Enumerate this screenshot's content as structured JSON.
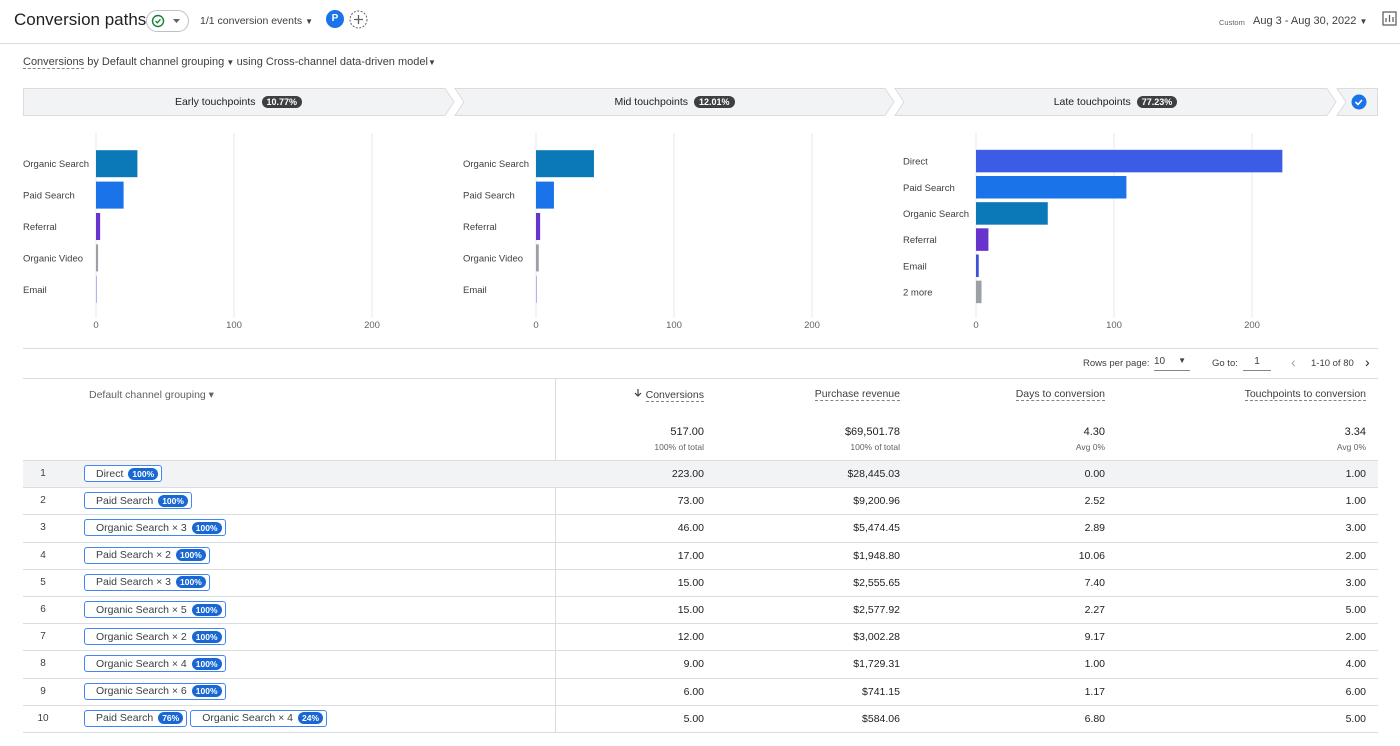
{
  "header": {
    "title": "Conversion paths",
    "events": "1/1 conversion events",
    "avatar": "P",
    "date_prefix": "Custom",
    "date_range": "Aug 3 - Aug 30, 2022"
  },
  "subtitle": {
    "metric": "Conversions",
    "dimension": "by Default channel grouping",
    "model": "using Cross-channel data-driven model"
  },
  "stages": [
    {
      "label": "Early touchpoints",
      "share": "10.77%"
    },
    {
      "label": "Mid touchpoints",
      "share": "12.01%"
    },
    {
      "label": "Late touchpoints",
      "share": "77.23%"
    }
  ],
  "chart_data": [
    {
      "type": "bar",
      "orientation": "horizontal",
      "categories": [
        "Organic Search",
        "Paid Search",
        "Referral",
        "Organic Video",
        "Email"
      ],
      "values": [
        30,
        20,
        3,
        1.5,
        0.3
      ],
      "colors": [
        "#0b78b8",
        "#1a73e8",
        "#6633cc",
        "#9aa0a6",
        "#3f51d8"
      ],
      "xlim": [
        0,
        250
      ],
      "xticks": [
        0,
        100,
        200
      ],
      "grid": true
    },
    {
      "type": "bar",
      "orientation": "horizontal",
      "categories": [
        "Organic Search",
        "Paid Search",
        "Referral",
        "Organic Video",
        "Email"
      ],
      "values": [
        42,
        13,
        3,
        2,
        0.3
      ],
      "colors": [
        "#0b78b8",
        "#1a73e8",
        "#6633cc",
        "#9aa0a6",
        "#3f51d8"
      ],
      "xlim": [
        0,
        250
      ],
      "xticks": [
        0,
        100,
        200
      ],
      "grid": true
    },
    {
      "type": "bar",
      "orientation": "horizontal",
      "categories": [
        "Direct",
        "Paid Search",
        "Organic Search",
        "Referral",
        "Email",
        "2 more"
      ],
      "values": [
        222,
        109,
        52,
        9,
        2,
        4
      ],
      "colors": [
        "#3d5ce6",
        "#1a73e8",
        "#0b78b8",
        "#6633cc",
        "#3f51d8",
        "#9aa0a6"
      ],
      "xlim": [
        0,
        250
      ],
      "xticks": [
        0,
        100,
        200
      ],
      "grid": true
    }
  ],
  "pagination": {
    "rows_label": "Rows per page:",
    "rows": "10",
    "goto_label": "Go to:",
    "page": "1",
    "range": "1-10 of 80"
  },
  "table": {
    "columns": [
      "Default channel grouping",
      "Conversions",
      "Purchase revenue",
      "Days to conversion",
      "Touchpoints to conversion"
    ],
    "totals": [
      [
        "517.00",
        "100% of total"
      ],
      [
        "$69,501.78",
        "100% of total"
      ],
      [
        "4.30",
        "Avg 0%"
      ],
      [
        "3.34",
        "Avg 0%"
      ]
    ],
    "rows": [
      {
        "rank": 1,
        "path": [
          {
            "label": "Direct",
            "share": "100%"
          }
        ],
        "cells": [
          "223.00",
          "$28,445.03",
          "0.00",
          "1.00"
        ]
      },
      {
        "rank": 2,
        "path": [
          {
            "label": "Paid Search",
            "share": "100%"
          }
        ],
        "cells": [
          "73.00",
          "$9,200.96",
          "2.52",
          "1.00"
        ]
      },
      {
        "rank": 3,
        "path": [
          {
            "label": "Organic Search × 3",
            "share": "100%"
          }
        ],
        "cells": [
          "46.00",
          "$5,474.45",
          "2.89",
          "3.00"
        ]
      },
      {
        "rank": 4,
        "path": [
          {
            "label": "Paid Search × 2",
            "share": "100%"
          }
        ],
        "cells": [
          "17.00",
          "$1,948.80",
          "10.06",
          "2.00"
        ]
      },
      {
        "rank": 5,
        "path": [
          {
            "label": "Paid Search × 3",
            "share": "100%"
          }
        ],
        "cells": [
          "15.00",
          "$2,555.65",
          "7.40",
          "3.00"
        ]
      },
      {
        "rank": 6,
        "path": [
          {
            "label": "Organic Search × 5",
            "share": "100%"
          }
        ],
        "cells": [
          "15.00",
          "$2,577.92",
          "2.27",
          "5.00"
        ]
      },
      {
        "rank": 7,
        "path": [
          {
            "label": "Organic Search × 2",
            "share": "100%"
          }
        ],
        "cells": [
          "12.00",
          "$3,002.28",
          "9.17",
          "2.00"
        ]
      },
      {
        "rank": 8,
        "path": [
          {
            "label": "Organic Search × 4",
            "share": "100%"
          }
        ],
        "cells": [
          "9.00",
          "$1,729.31",
          "1.00",
          "4.00"
        ]
      },
      {
        "rank": 9,
        "path": [
          {
            "label": "Organic Search × 6",
            "share": "100%"
          }
        ],
        "cells": [
          "6.00",
          "$741.15",
          "1.17",
          "6.00"
        ]
      },
      {
        "rank": 10,
        "path": [
          {
            "label": "Paid Search",
            "share": "76%"
          },
          {
            "label": "Organic Search × 4",
            "share": "24%"
          }
        ],
        "cells": [
          "5.00",
          "$584.06",
          "6.80",
          "5.00"
        ]
      }
    ]
  }
}
